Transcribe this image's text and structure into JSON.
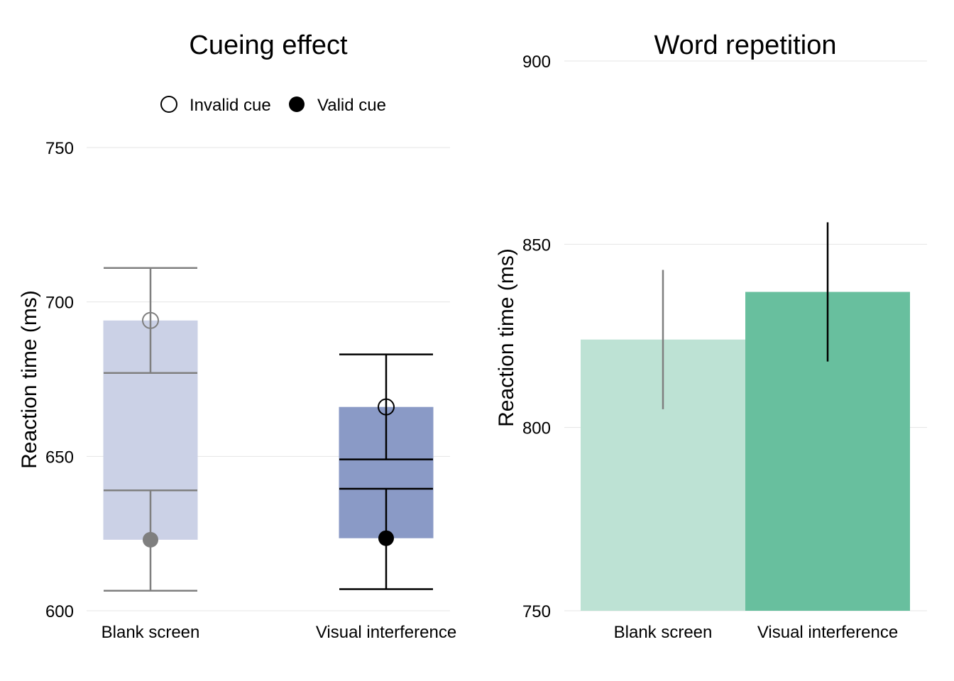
{
  "colors": {
    "cueing_blank_bar": "#cbd1e6",
    "cueing_visual_bar": "#8a9ac6",
    "repetition_blank_bar": "#bde2d4",
    "repetition_visual_bar": "#68bf9e",
    "gridline": "#e5e5e5",
    "blank_stroke": "#7f7f7f",
    "visual_stroke": "#000000"
  },
  "chart_data": [
    {
      "type": "bar",
      "title": "Cueing effect",
      "ylabel": "Reaction time (ms)",
      "xlabel": "",
      "ylim": [
        600,
        750
      ],
      "yticks": [
        600,
        650,
        700,
        750
      ],
      "grid": true,
      "legend_placement": "top",
      "legend": [
        {
          "label": "Invalid cue",
          "marker": "open-circle"
        },
        {
          "label": "Valid cue",
          "marker": "filled-circle"
        }
      ],
      "categories": [
        "Blank screen",
        "Visual interference"
      ],
      "series": [
        {
          "name": "Invalid cue",
          "values": [
            694,
            666
          ],
          "ci_low": [
            677,
            649
          ],
          "ci_high": [
            711,
            683
          ]
        },
        {
          "name": "Valid cue",
          "values": [
            623,
            623.5
          ],
          "ci_low": [
            606.5,
            607
          ],
          "ci_high": [
            639,
            639.5
          ]
        }
      ]
    },
    {
      "type": "bar",
      "title": "Word repetition",
      "ylabel": "Reaction time (ms)",
      "xlabel": "",
      "ylim": [
        750,
        900
      ],
      "yticks": [
        750,
        800,
        850,
        900
      ],
      "grid": true,
      "categories": [
        "Blank screen",
        "Visual interference"
      ],
      "values": [
        824,
        837
      ],
      "ci_low": [
        805,
        818
      ],
      "ci_high": [
        843,
        856
      ]
    }
  ]
}
